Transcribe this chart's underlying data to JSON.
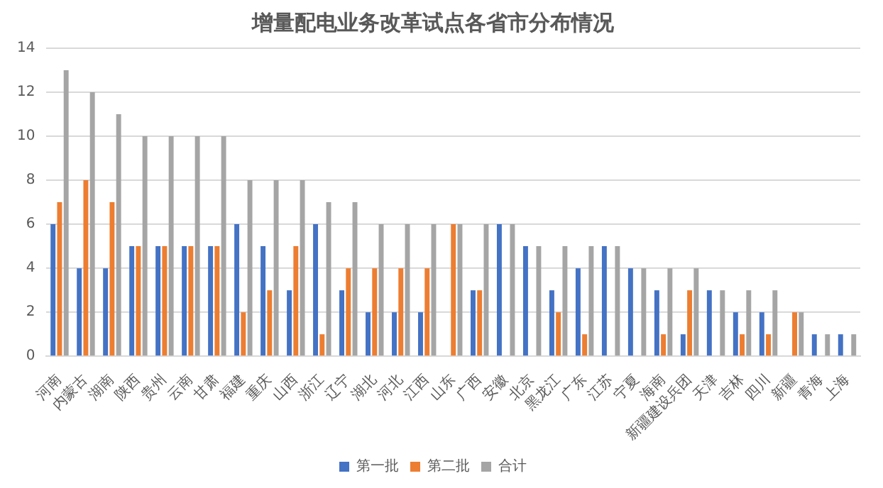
{
  "chart_data": {
    "type": "bar",
    "title": "增量配电业务改革试点各省市分布情况",
    "categories": [
      "河南",
      "内蒙古",
      "湖南",
      "陕西",
      "贵州",
      "云南",
      "甘肃",
      "福建",
      "重庆",
      "山西",
      "浙江",
      "辽宁",
      "湖北",
      "河北",
      "江西",
      "山东",
      "广西",
      "安徽",
      "北京",
      "黑龙江",
      "广东",
      "江苏",
      "宁夏",
      "海南",
      "新疆建设兵团",
      "天津",
      "吉林",
      "四川",
      "新疆",
      "青海",
      "上海"
    ],
    "series": [
      {
        "name": "第一批",
        "color": "#4472c4",
        "values": [
          6,
          4,
          4,
          5,
          5,
          5,
          5,
          6,
          5,
          3,
          6,
          3,
          2,
          2,
          2,
          0,
          3,
          6,
          5,
          3,
          4,
          5,
          4,
          3,
          1,
          3,
          2,
          2,
          0,
          1,
          1
        ]
      },
      {
        "name": "第二批",
        "color": "#ed7d31",
        "values": [
          7,
          8,
          7,
          5,
          5,
          5,
          5,
          2,
          3,
          5,
          1,
          4,
          4,
          4,
          4,
          6,
          3,
          0,
          0,
          2,
          1,
          0,
          0,
          1,
          3,
          0,
          1,
          1,
          2,
          0,
          0
        ]
      },
      {
        "name": "合计",
        "color": "#a5a5a5",
        "values": [
          13,
          12,
          11,
          10,
          10,
          10,
          10,
          8,
          8,
          8,
          7,
          7,
          6,
          6,
          6,
          6,
          6,
          6,
          5,
          5,
          5,
          5,
          4,
          4,
          4,
          3,
          3,
          3,
          2,
          1,
          1
        ]
      }
    ],
    "ylim": [
      0,
      14
    ],
    "yticks": [
      0,
      2,
      4,
      6,
      8,
      10,
      12,
      14
    ],
    "grid": "y",
    "legend": "bottom"
  }
}
